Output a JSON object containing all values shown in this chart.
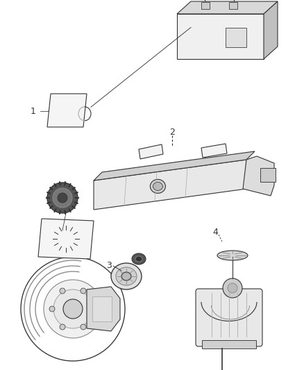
{
  "background_color": "#ffffff",
  "figure_width": 4.38,
  "figure_height": 5.33,
  "dpi": 100,
  "line_color": "#333333",
  "text_color": "#222222",
  "gray_light": "#e8e8e8",
  "gray_mid": "#cccccc",
  "gray_dark": "#999999"
}
